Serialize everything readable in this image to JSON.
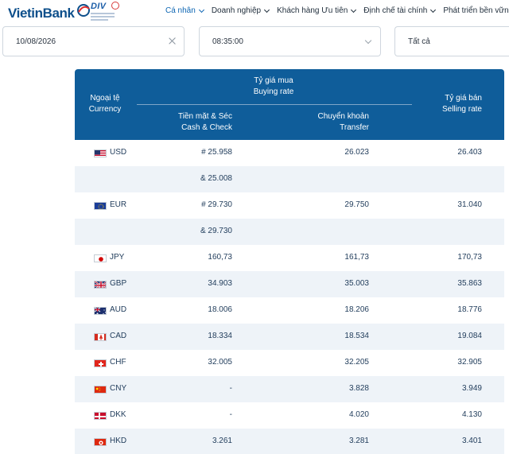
{
  "header": {
    "brand": "VietinBank",
    "badge": "DIV",
    "nav": [
      {
        "label": "Cá nhân",
        "active": true
      },
      {
        "label": "Doanh nghiệp",
        "active": false
      },
      {
        "label": "Khách hàng Ưu tiên",
        "active": false
      },
      {
        "label": "Định chế tài chính",
        "active": false
      },
      {
        "label": "Phát triển bền vững",
        "active": false
      }
    ]
  },
  "filters": {
    "date": "10/08/2026",
    "time": "08:35:00",
    "type": "Tất cả"
  },
  "table": {
    "headers": {
      "currency_vi": "Ngoại tệ",
      "currency_en": "Currency",
      "buy_vi": "Tỷ giá mua",
      "buy_en": "Buying rate",
      "cash_vi": "Tiền mặt & Séc",
      "cash_en": "Cash & Check",
      "transfer_vi": "Chuyển khoản",
      "transfer_en": "Transfer",
      "sell_vi": "Tỷ giá bán",
      "sell_en": "Selling rate"
    },
    "rows": [
      {
        "flag": "us-flag-icon",
        "code": "USD",
        "cash": "# 25.958",
        "transfer": "26.023",
        "sell": "26.403"
      },
      {
        "flag": "",
        "code": "",
        "cash": "& 25.008",
        "transfer": "",
        "sell": ""
      },
      {
        "flag": "eu-flag-icon",
        "code": "EUR",
        "cash": "# 29.730",
        "transfer": "29.750",
        "sell": "31.040"
      },
      {
        "flag": "",
        "code": "",
        "cash": "& 29.730",
        "transfer": "",
        "sell": ""
      },
      {
        "flag": "jp-flag-icon",
        "code": "JPY",
        "cash": "160,73",
        "transfer": "161,73",
        "sell": "170,73"
      },
      {
        "flag": "gb-flag-icon",
        "code": "GBP",
        "cash": "34.903",
        "transfer": "35.003",
        "sell": "35.863"
      },
      {
        "flag": "au-flag-icon",
        "code": "AUD",
        "cash": "18.006",
        "transfer": "18.206",
        "sell": "18.776"
      },
      {
        "flag": "ca-flag-icon",
        "code": "CAD",
        "cash": "18.334",
        "transfer": "18.534",
        "sell": "19.084"
      },
      {
        "flag": "ch-flag-icon",
        "code": "CHF",
        "cash": "32.005",
        "transfer": "32.205",
        "sell": "32.905"
      },
      {
        "flag": "cn-flag-icon",
        "code": "CNY",
        "cash": "-",
        "transfer": "3.828",
        "sell": "3.949"
      },
      {
        "flag": "dk-flag-icon",
        "code": "DKK",
        "cash": "-",
        "transfer": "4.020",
        "sell": "4.130"
      },
      {
        "flag": "hk-flag-icon",
        "code": "HKD",
        "cash": "3.261",
        "transfer": "3.281",
        "sell": "3.401"
      }
    ]
  },
  "colors": {
    "header_bg": "#0f5d9a",
    "row_alt": "#eef3f8",
    "nav_active": "#0d66b3",
    "brand": "#0d4f8b"
  }
}
